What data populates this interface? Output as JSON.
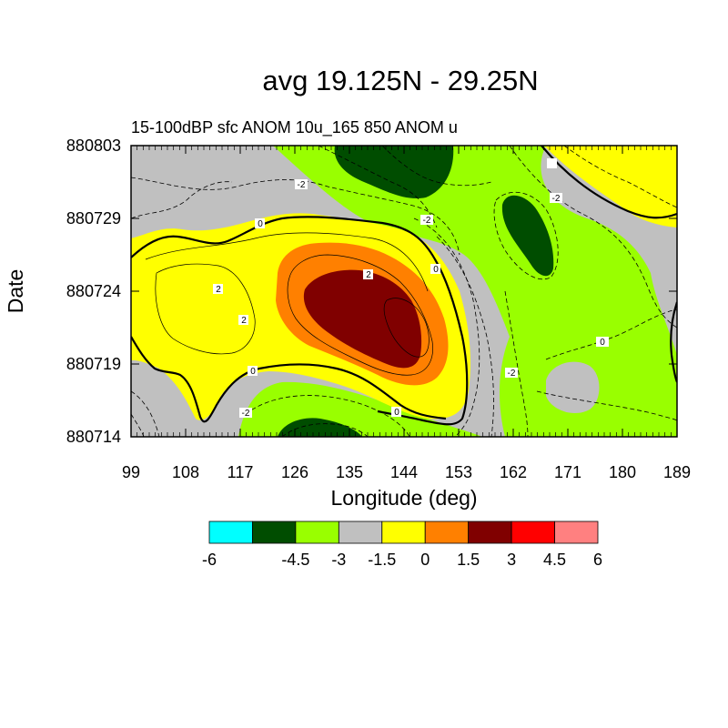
{
  "chart_data": {
    "type": "heatmap",
    "title": "avg 19.125N - 29.25N",
    "subtitle": "15-100dBP sfc ANOM 10u_165 850 ANOM u",
    "xlabel": "Longitude (deg)",
    "ylabel": "Date",
    "xlim": [
      99,
      189
    ],
    "x_ticks": [
      "99",
      "108",
      "117",
      "126",
      "135",
      "144",
      "153",
      "162",
      "171",
      "180",
      "189"
    ],
    "y_ticks": [
      "880714",
      "880719",
      "880724",
      "880729",
      "880803"
    ],
    "colorbar": {
      "colors": [
        "#00ffff",
        "#004d00",
        "#99ff00",
        "#c0c0c0",
        "#ffff00",
        "#ff8000",
        "#800000",
        "#ff0000",
        "#ff8080"
      ],
      "labels": [
        "-6",
        "-4.5",
        "-3",
        "-1.5",
        "0",
        "1.5",
        "3",
        "4.5",
        "6"
      ]
    },
    "contour_labels": [
      "-2",
      "0",
      "2",
      "2",
      "2",
      "0",
      "0",
      "-2",
      "0",
      "-2",
      "-2",
      "-2",
      "0"
    ]
  }
}
